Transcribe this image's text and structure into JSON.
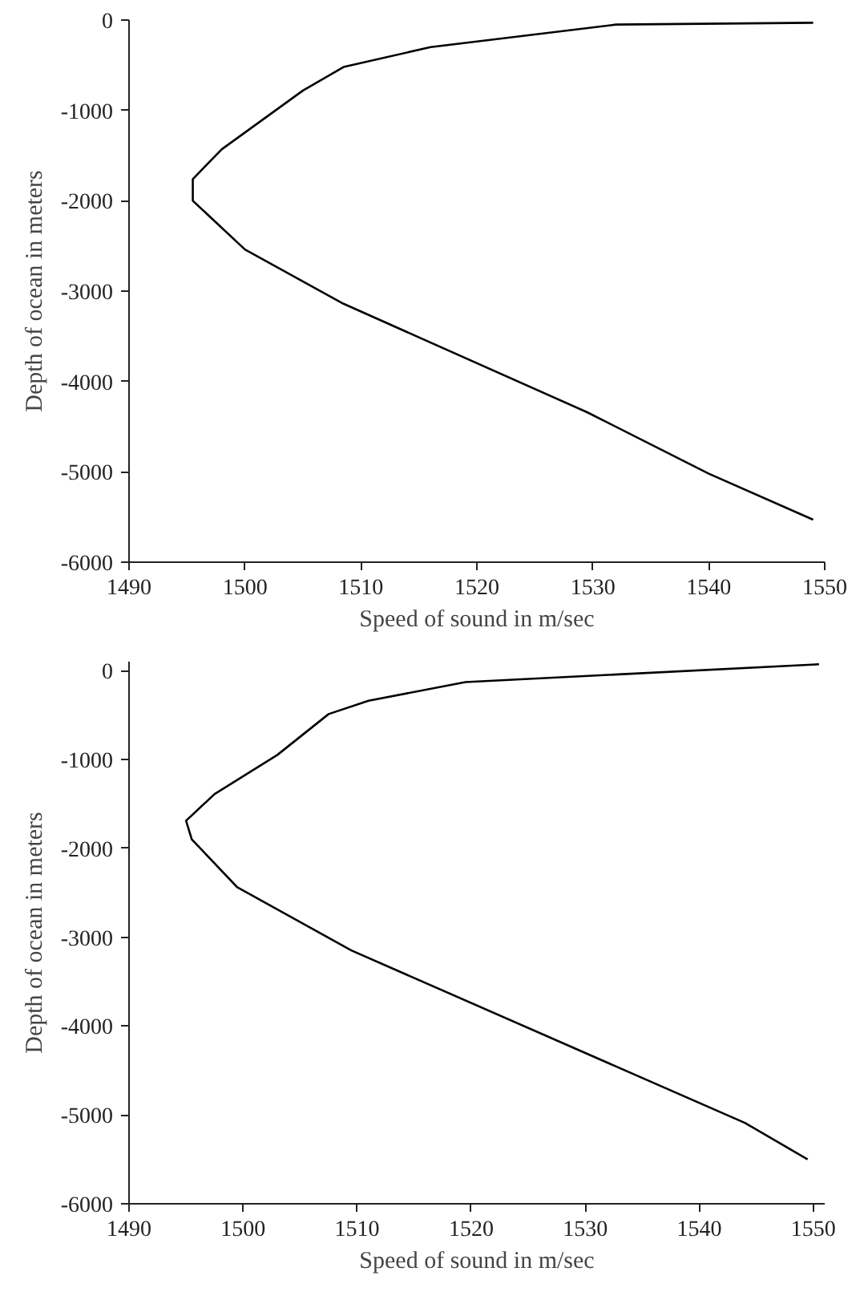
{
  "chart_data": [
    {
      "type": "line",
      "xlabel": "Speed of sound in m/sec",
      "ylabel": "Depth of ocean in meters",
      "x": [
        1549,
        1532,
        1516,
        1508.5,
        1505,
        1498,
        1495.5,
        1495.5,
        1500,
        1508.5,
        1529.5,
        1540,
        1549
      ],
      "series": [
        {
          "color": "#000000",
          "values": [
            -30,
            -50,
            -300,
            -520,
            -780,
            -1430,
            -1760,
            -2000,
            -2540,
            -3140,
            -4340,
            -5020,
            -5530
          ]
        }
      ],
      "xlim": [
        1490,
        1550
      ],
      "ylim": [
        -6000,
        0
      ],
      "xticks": [
        1490,
        1500,
        1510,
        1520,
        1530,
        1540,
        1550
      ],
      "yticks": [
        -6000,
        -5000,
        -4000,
        -3000,
        -2000,
        -1000,
        0
      ],
      "grid": false
    },
    {
      "type": "line",
      "xlabel": "Speed of sound in m/sec",
      "ylabel": "Depth of ocean in meters",
      "x": [
        1550.5,
        1519.5,
        1511,
        1507.5,
        1503,
        1497.5,
        1495,
        1495.5,
        1499.5,
        1509.5,
        1544,
        1549.5
      ],
      "series": [
        {
          "color": "#000000",
          "values": [
            70,
            -130,
            -340,
            -490,
            -950,
            -1390,
            -1690,
            -1900,
            -2440,
            -3150,
            -5090,
            -5500
          ]
        }
      ],
      "xlim": [
        1490,
        1551
      ],
      "ylim": [
        -6000,
        100
      ],
      "xticks": [
        1490,
        1500,
        1510,
        1520,
        1530,
        1540,
        1550
      ],
      "yticks": [
        -6000,
        -5000,
        -4000,
        -3000,
        -2000,
        -1000,
        0
      ],
      "grid": false
    }
  ]
}
